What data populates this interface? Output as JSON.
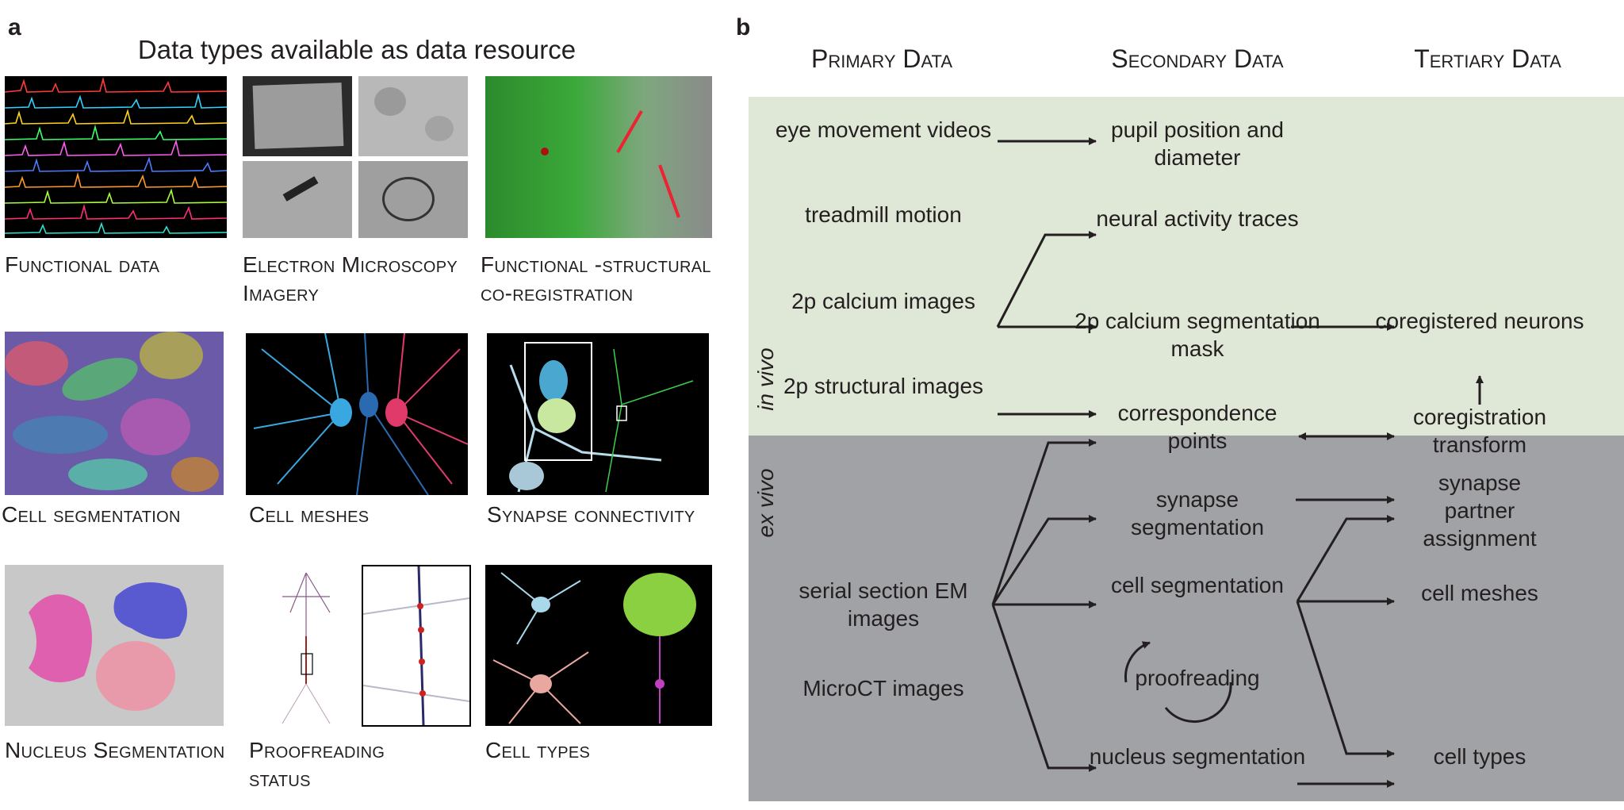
{
  "panel_a": {
    "letter": "a",
    "title": "Data types available as data resource",
    "tiles": [
      {
        "id": "functional",
        "caption": "Functional data"
      },
      {
        "id": "em",
        "caption": "Electron Microscopy Imagery"
      },
      {
        "id": "coreg",
        "caption": "Functional -structural co-registration"
      },
      {
        "id": "cellseg",
        "caption": "Cell segmentation"
      },
      {
        "id": "meshes",
        "caption": "Cell meshes"
      },
      {
        "id": "synapse",
        "caption": "Synapse connectivity"
      },
      {
        "id": "nucleus",
        "caption": "Nucleus Segmentation"
      },
      {
        "id": "proofread",
        "caption": "Proofreading status"
      },
      {
        "id": "celltypes",
        "caption": "Cell types"
      }
    ]
  },
  "panel_b": {
    "letter": "b",
    "headers": {
      "primary": "Primary Data",
      "secondary": "Secondary Data",
      "tertiary": "Tertiary Data"
    },
    "zones": {
      "in_vivo": "in vivo",
      "ex_vivo": "ex vivo",
      "in_vivo_color": "#dfe7d6",
      "ex_vivo_color": "#a1a2a6"
    },
    "primary": {
      "eye": "eye movement videos",
      "treadmill": "treadmill motion",
      "calcium": "2p calcium images",
      "structural": "2p structural images",
      "serial": "serial section EM images",
      "microct": "MicroCT images"
    },
    "secondary": {
      "pupil": "pupil position and diameter",
      "neural": "neural activity traces",
      "mask": "2p calcium segmentation mask",
      "corresp": "correspondence points",
      "synseg": "synapse segmentation",
      "cellseg": "cell segmentation",
      "proofreading": "proofreading",
      "nucseg": "nucleus segmentation"
    },
    "tertiary": {
      "coregistered": "coregistered neurons",
      "transform": "coregistration transform",
      "partner": "synapse partner assignment",
      "meshes": "cell meshes",
      "types": "cell types"
    }
  }
}
